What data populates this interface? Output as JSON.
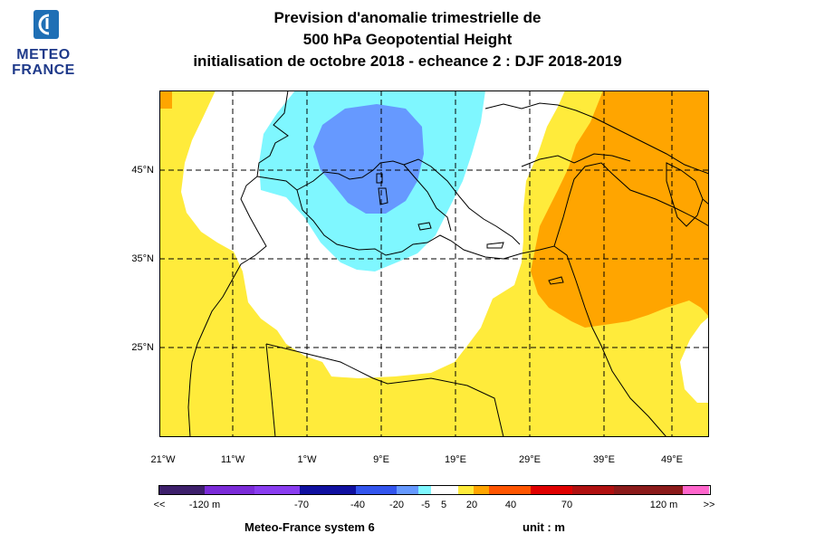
{
  "logo": {
    "line1": "METEO",
    "line2": "FRANCE",
    "colors": {
      "text": "#1f3a8a",
      "mark": "#1f6fb5"
    }
  },
  "title": {
    "line1": "Prevision d'anomalie trimestrielle de",
    "line2": "500 hPa Geopotential Height",
    "line3": "initialisation de octobre 2018  -  echeance 2 : DJF 2018-2019"
  },
  "map": {
    "lat_labels": [
      "45°N",
      "35°N",
      "25°N"
    ],
    "lon_labels": [
      "21°W",
      "11°W",
      "1°W",
      "9°E",
      "19°E",
      "29°E",
      "39°E",
      "49°E"
    ],
    "region_colors": {
      "pos_5_20": "#ffeb3b",
      "pos_20_40": "#ffa500",
      "neg_20_5": "#7ff7ff",
      "neg_40_20": "#6699ff",
      "neutral": "#ffffff"
    }
  },
  "colorbar": {
    "labels": [
      "<<",
      "-120 m",
      "-70",
      "-40",
      "-20",
      "-5",
      "5",
      "20",
      "40",
      "70",
      "120 m",
      ">>"
    ],
    "colors": [
      "#3d1f6b",
      "#7b2bd8",
      "#8a3df0",
      "#1010a0",
      "#3355ee",
      "#6699ff",
      "#7ff7ff",
      "#ffffff",
      "#ffeb3b",
      "#ffa500",
      "#ff5500",
      "#e00000",
      "#b01010",
      "#8b1a1a",
      "#ff66cc"
    ]
  },
  "footer": {
    "system": "Meteo-France system 6",
    "unit": "unit :  m"
  }
}
